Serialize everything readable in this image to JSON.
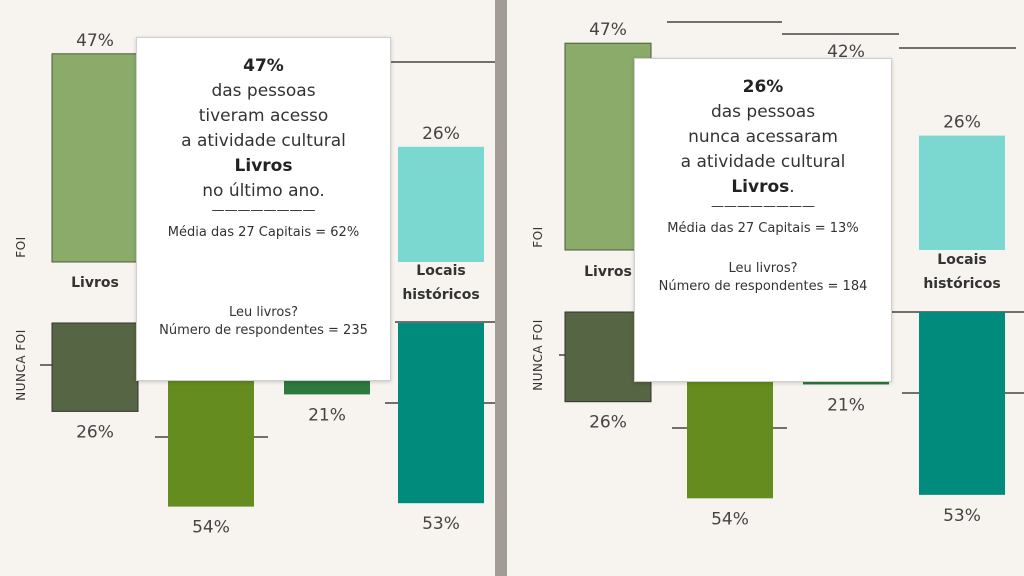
{
  "colors": {
    "background": "#f7f3ef",
    "divider": "#a39b95",
    "livros_foi": "#8aab6a",
    "livros_nunca": "#566543",
    "green_nunca": "#648c1e",
    "historicos_foi": "#7ad8d0",
    "historicos_nunca": "#008b7c",
    "third_nunca": "#2e7a3e"
  },
  "left_panel": {
    "axis_foi": "FOI",
    "axis_nunca": "NUNCA FOI",
    "chart_data": {
      "type": "bar",
      "categories": [
        "Livros",
        "",
        "",
        "Locais históricos"
      ],
      "series": [
        {
          "name": "FOI",
          "values": [
            47,
            null,
            null,
            26
          ]
        },
        {
          "name": "NUNCA FOI",
          "values": [
            26,
            54,
            21,
            53
          ]
        }
      ],
      "category_labels": [
        "Livros",
        "",
        "",
        "Locais\nhistóricos"
      ],
      "value_labels_foi": [
        "47%",
        "",
        "",
        "26%"
      ],
      "value_labels_nunca": [
        "26%",
        "54%",
        "21%",
        "53%"
      ]
    },
    "tooltip": {
      "value": "47%",
      "line1": "das pessoas",
      "line2": "tiveram acesso",
      "line3": "a atividade cultural",
      "activity": "Livros",
      "line4": "no último ano.",
      "rule": "————————",
      "average": "Média das 27 Capitais = 62%",
      "question": "Leu livros?",
      "respondents": "Número de respondentes = 235"
    }
  },
  "right_panel": {
    "axis_foi": "FOI",
    "axis_nunca": "NUNCA FOI",
    "chart_data": {
      "type": "bar",
      "categories": [
        "Livros",
        "",
        "",
        "Locais históricos"
      ],
      "series": [
        {
          "name": "FOI",
          "values": [
            47,
            null,
            42,
            26
          ]
        },
        {
          "name": "NUNCA FOI",
          "values": [
            26,
            54,
            21,
            53
          ]
        }
      ],
      "category_labels": [
        "Livros",
        "",
        "",
        "Locais\nhistóricos"
      ],
      "value_labels_foi": [
        "47%",
        "",
        "42%",
        "26%"
      ],
      "value_labels_nunca": [
        "26%",
        "54%",
        "21%",
        "53%"
      ]
    },
    "tooltip": {
      "value": "26%",
      "line1": "das pessoas",
      "line2": "nunca acessaram",
      "line3": "a atividade cultural",
      "activity": "Livros",
      "activity_suffix": ".",
      "rule": "————————",
      "average": "Média das 27 Capitais = 13%",
      "question": "Leu livros?",
      "respondents": "Número de respondentes = 184"
    }
  }
}
